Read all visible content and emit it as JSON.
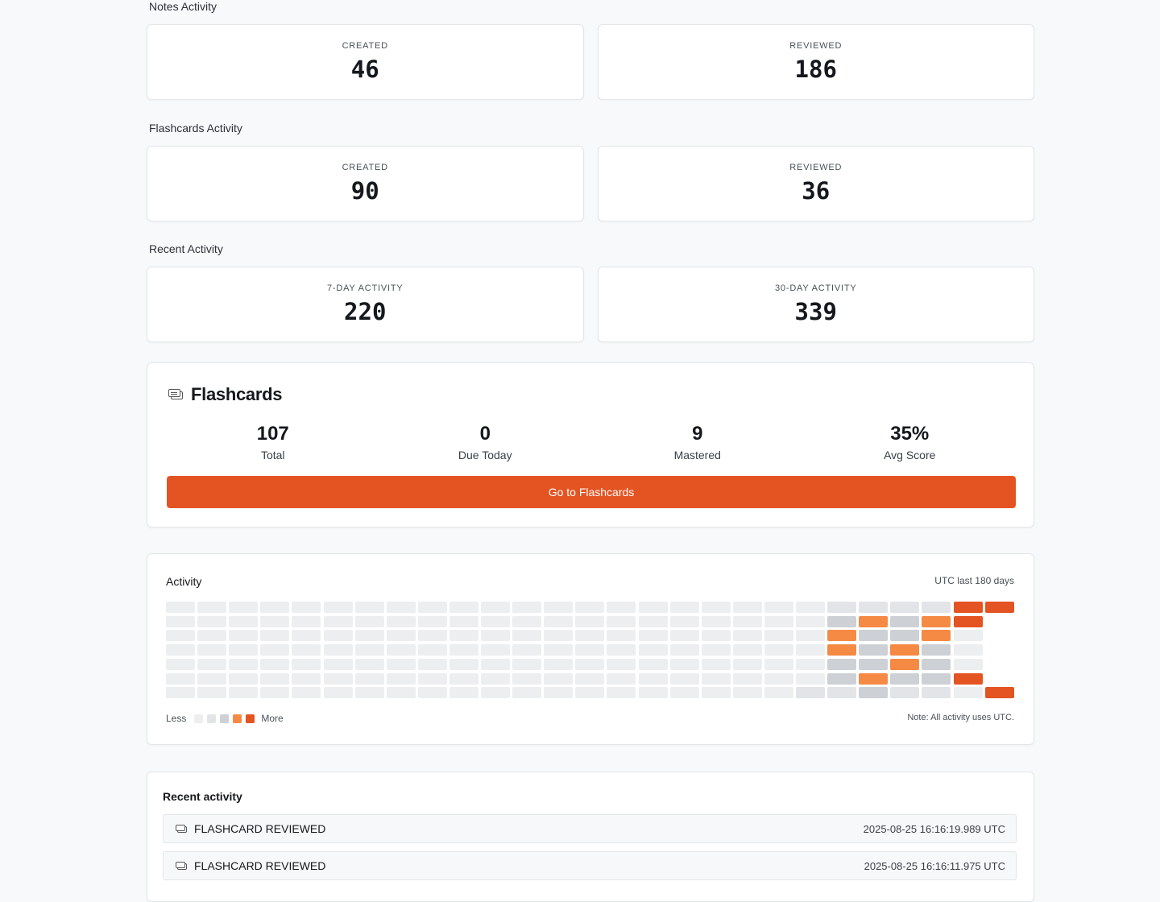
{
  "notes_activity": {
    "title": "Notes Activity",
    "created_label": "CREATED",
    "created_value": "46",
    "reviewed_label": "REVIEWED",
    "reviewed_value": "186"
  },
  "flashcards_activity": {
    "title": "Flashcards Activity",
    "created_label": "CREATED",
    "created_value": "90",
    "reviewed_label": "REVIEWED",
    "reviewed_value": "36"
  },
  "recent_activity_stats": {
    "title": "Recent Activity",
    "seven_day_label": "7-DAY ACTIVITY",
    "seven_day_value": "220",
    "thirty_day_label": "30-DAY ACTIVITY",
    "thirty_day_value": "339"
  },
  "flashcards": {
    "icon": "flashcard-icon",
    "title": "Flashcards",
    "stats": [
      {
        "value": "107",
        "label": "Total"
      },
      {
        "value": "0",
        "label": "Due Today"
      },
      {
        "value": "9",
        "label": "Mastered"
      },
      {
        "value": "35%",
        "label": "Avg Score"
      }
    ],
    "button_label": "Go to Flashcards",
    "accent": "#e45423"
  },
  "activity_heatmap": {
    "title": "Activity",
    "range_label": "UTC last 180 days",
    "legend_less": "Less",
    "legend_more": "More",
    "note": "Note: All activity uses UTC.",
    "levels": [
      "#eceef0",
      "#e2e4e7",
      "#cdd0d5",
      "#f58a45",
      "#e45423"
    ],
    "weeks": 27,
    "days": 7,
    "columns": [
      {
        "week": 20,
        "levels": [
          0,
          0,
          0,
          0,
          0,
          0,
          1
        ]
      },
      {
        "week": 21,
        "levels": [
          1,
          2,
          3,
          3,
          2,
          2,
          1
        ]
      },
      {
        "week": 22,
        "levels": [
          1,
          3,
          2,
          2,
          2,
          3,
          2
        ]
      },
      {
        "week": 23,
        "levels": [
          1,
          2,
          2,
          3,
          3,
          2,
          1
        ]
      },
      {
        "week": 24,
        "levels": [
          1,
          3,
          3,
          2,
          2,
          2,
          1
        ]
      },
      {
        "week": 25,
        "levels": [
          4,
          4,
          0,
          0,
          0,
          4,
          0
        ]
      },
      {
        "week": 26,
        "levels": [
          4,
          null,
          null,
          null,
          null,
          null,
          4
        ]
      }
    ]
  },
  "recent_activity": {
    "title": "Recent activity",
    "items": [
      {
        "icon": "flashcard-icon",
        "type": "FLASHCARD REVIEWED",
        "time": "2025-08-25 16:16:19.989 UTC"
      },
      {
        "icon": "flashcard-icon",
        "type": "FLASHCARD REVIEWED",
        "time": "2025-08-25 16:16:11.975 UTC"
      }
    ]
  }
}
